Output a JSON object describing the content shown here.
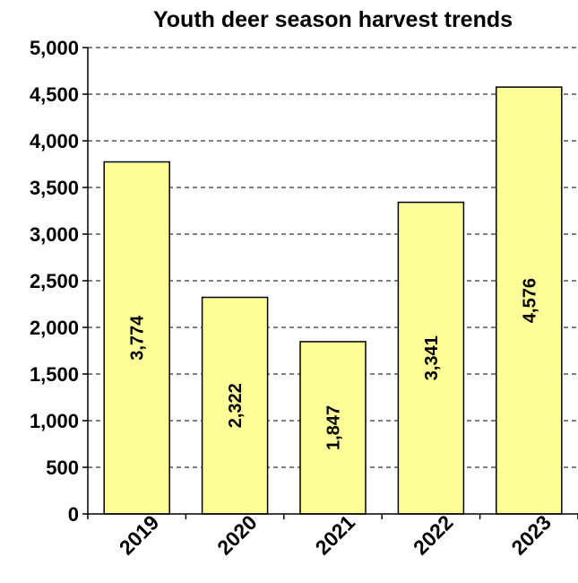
{
  "chart_data": {
    "type": "bar",
    "title": "Youth deer season harvest trends",
    "xlabel": "",
    "ylabel": "",
    "categories": [
      "2019",
      "2020",
      "2021",
      "2022",
      "2023"
    ],
    "values": [
      3774,
      2322,
      1847,
      3341,
      4576
    ],
    "data_labels": [
      "3,774",
      "2,322",
      "1,847",
      "3,341",
      "4,576"
    ],
    "y_ticks": [
      0,
      500,
      1000,
      1500,
      2000,
      2500,
      3000,
      3500,
      4000,
      4500,
      5000
    ],
    "y_tick_labels": [
      "0",
      "500",
      "1,000",
      "1,500",
      "2,000",
      "2,500",
      "3,000",
      "3,500",
      "4,000",
      "4,500",
      "5,000"
    ],
    "ylim": [
      0,
      5000
    ],
    "grid": "dashed horizontal",
    "legend": "none",
    "bar_color": "#FFFF99",
    "bar_edge_color": "#000000"
  }
}
